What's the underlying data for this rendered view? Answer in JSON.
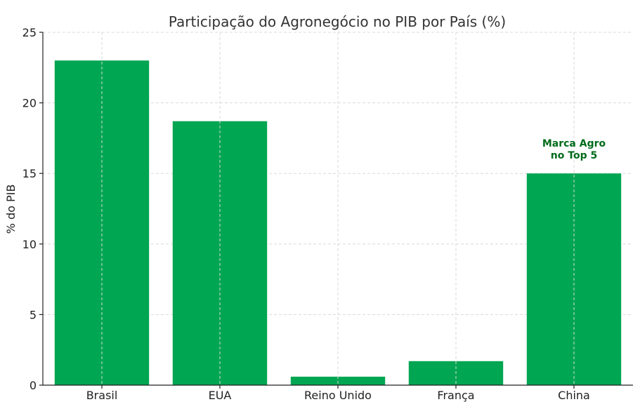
{
  "chart_data": {
    "type": "bar",
    "title": "Participação do Agronegócio no PIB por País (%)",
    "xlabel": "",
    "ylabel": "% do PIB",
    "categories": [
      "Brasil",
      "EUA",
      "Reino Unido",
      "França",
      "China"
    ],
    "values": [
      23,
      18.7,
      0.6,
      1.7,
      15
    ],
    "ylim": [
      0,
      25
    ],
    "yticks": [
      0,
      5,
      10,
      15,
      20,
      25
    ],
    "grid": true,
    "bar_color": "#00a651",
    "annotation": {
      "category": "China",
      "lines": [
        "Marca Agro",
        "no Top 5"
      ],
      "color": "#006b1a"
    }
  }
}
